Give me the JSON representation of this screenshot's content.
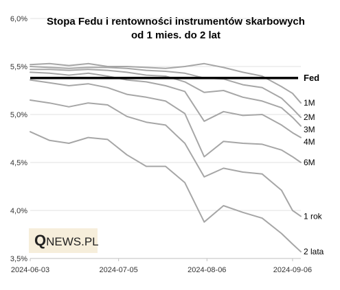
{
  "chart_data": {
    "type": "line",
    "title": "Stopa Fedu i rentowności instrumentów skarbowych",
    "subtitle": "od 1 mies. do 2 lat",
    "x_ticks": [
      "2024-06-03",
      "2024-07-05",
      "2024-08-06",
      "2024-09-06"
    ],
    "x_range": [
      "2024-06-03",
      "2024-09-09"
    ],
    "y_ticks": [
      "6,0%",
      "5,5%",
      "5,0%",
      "4,5%",
      "4,0%",
      "3,5%"
    ],
    "ylim": [
      3.5,
      6.0
    ],
    "grid": "horizontal",
    "watermark": {
      "prefix": "Q",
      "rest": "NEWS.PL"
    },
    "fed": {
      "name": "Fed",
      "value": 5.38
    },
    "series": [
      {
        "name": "1M",
        "points": [
          [
            "2024-06-03",
            5.52
          ],
          [
            "2024-06-10",
            5.53
          ],
          [
            "2024-06-17",
            5.51
          ],
          [
            "2024-06-24",
            5.53
          ],
          [
            "2024-07-01",
            5.5
          ],
          [
            "2024-07-08",
            5.5
          ],
          [
            "2024-07-15",
            5.49
          ],
          [
            "2024-07-22",
            5.48
          ],
          [
            "2024-07-29",
            5.5
          ],
          [
            "2024-08-05",
            5.53
          ],
          [
            "2024-08-12",
            5.49
          ],
          [
            "2024-08-19",
            5.44
          ],
          [
            "2024-08-26",
            5.4
          ],
          [
            "2024-09-02",
            5.29
          ],
          [
            "2024-09-06",
            5.22
          ],
          [
            "2024-09-09",
            5.12
          ]
        ]
      },
      {
        "name": "2M",
        "points": [
          [
            "2024-06-03",
            5.5
          ],
          [
            "2024-06-10",
            5.49
          ],
          [
            "2024-06-17",
            5.48
          ],
          [
            "2024-06-24",
            5.49
          ],
          [
            "2024-07-01",
            5.49
          ],
          [
            "2024-07-08",
            5.48
          ],
          [
            "2024-07-15",
            5.46
          ],
          [
            "2024-07-22",
            5.45
          ],
          [
            "2024-07-29",
            5.43
          ],
          [
            "2024-08-05",
            5.38
          ],
          [
            "2024-08-12",
            5.37
          ],
          [
            "2024-08-19",
            5.31
          ],
          [
            "2024-08-26",
            5.28
          ],
          [
            "2024-09-02",
            5.17
          ],
          [
            "2024-09-06",
            5.06
          ],
          [
            "2024-09-09",
            4.97
          ]
        ]
      },
      {
        "name": "3M",
        "points": [
          [
            "2024-06-03",
            5.47
          ],
          [
            "2024-06-10",
            5.47
          ],
          [
            "2024-06-17",
            5.46
          ],
          [
            "2024-06-24",
            5.47
          ],
          [
            "2024-07-01",
            5.46
          ],
          [
            "2024-07-08",
            5.44
          ],
          [
            "2024-07-15",
            5.41
          ],
          [
            "2024-07-22",
            5.4
          ],
          [
            "2024-07-29",
            5.34
          ],
          [
            "2024-08-05",
            5.23
          ],
          [
            "2024-08-12",
            5.25
          ],
          [
            "2024-08-19",
            5.18
          ],
          [
            "2024-08-26",
            5.14
          ],
          [
            "2024-09-02",
            5.07
          ],
          [
            "2024-09-06",
            4.97
          ],
          [
            "2024-09-09",
            4.88
          ]
        ]
      },
      {
        "name": "4M",
        "points": [
          [
            "2024-06-03",
            5.44
          ],
          [
            "2024-06-10",
            5.43
          ],
          [
            "2024-06-17",
            5.41
          ],
          [
            "2024-06-24",
            5.43
          ],
          [
            "2024-07-01",
            5.4
          ],
          [
            "2024-07-08",
            5.36
          ],
          [
            "2024-07-15",
            5.34
          ],
          [
            "2024-07-22",
            5.3
          ],
          [
            "2024-07-29",
            5.24
          ],
          [
            "2024-08-05",
            4.93
          ],
          [
            "2024-08-12",
            5.03
          ],
          [
            "2024-08-19",
            4.99
          ],
          [
            "2024-08-26",
            5.0
          ],
          [
            "2024-09-02",
            4.89
          ],
          [
            "2024-09-06",
            4.81
          ],
          [
            "2024-09-09",
            4.76
          ]
        ]
      },
      {
        "name": "6M",
        "points": [
          [
            "2024-06-03",
            5.36
          ],
          [
            "2024-06-10",
            5.33
          ],
          [
            "2024-06-17",
            5.3
          ],
          [
            "2024-06-24",
            5.32
          ],
          [
            "2024-07-01",
            5.28
          ],
          [
            "2024-07-08",
            5.21
          ],
          [
            "2024-07-15",
            5.18
          ],
          [
            "2024-07-22",
            5.14
          ],
          [
            "2024-07-29",
            5.01
          ],
          [
            "2024-08-05",
            4.56
          ],
          [
            "2024-08-12",
            4.72
          ],
          [
            "2024-08-19",
            4.7
          ],
          [
            "2024-08-26",
            4.69
          ],
          [
            "2024-09-02",
            4.63
          ],
          [
            "2024-09-06",
            4.56
          ],
          [
            "2024-09-09",
            4.5
          ]
        ]
      },
      {
        "name": "1 rok",
        "points": [
          [
            "2024-06-03",
            5.15
          ],
          [
            "2024-06-10",
            5.12
          ],
          [
            "2024-06-17",
            5.08
          ],
          [
            "2024-06-24",
            5.12
          ],
          [
            "2024-07-01",
            5.1
          ],
          [
            "2024-07-08",
            4.98
          ],
          [
            "2024-07-15",
            4.92
          ],
          [
            "2024-07-22",
            4.89
          ],
          [
            "2024-07-29",
            4.7
          ],
          [
            "2024-08-05",
            4.35
          ],
          [
            "2024-08-12",
            4.44
          ],
          [
            "2024-08-19",
            4.4
          ],
          [
            "2024-08-26",
            4.38
          ],
          [
            "2024-09-02",
            4.21
          ],
          [
            "2024-09-06",
            4.0
          ],
          [
            "2024-09-09",
            3.94
          ]
        ]
      },
      {
        "name": "2 lata",
        "points": [
          [
            "2024-06-03",
            4.82
          ],
          [
            "2024-06-10",
            4.73
          ],
          [
            "2024-06-17",
            4.7
          ],
          [
            "2024-06-24",
            4.76
          ],
          [
            "2024-07-01",
            4.74
          ],
          [
            "2024-07-08",
            4.58
          ],
          [
            "2024-07-15",
            4.46
          ],
          [
            "2024-07-22",
            4.46
          ],
          [
            "2024-07-29",
            4.29
          ],
          [
            "2024-08-05",
            3.88
          ],
          [
            "2024-08-12",
            4.05
          ],
          [
            "2024-08-19",
            3.98
          ],
          [
            "2024-08-26",
            3.92
          ],
          [
            "2024-09-02",
            3.76
          ],
          [
            "2024-09-06",
            3.65
          ],
          [
            "2024-09-09",
            3.57
          ]
        ]
      }
    ]
  }
}
